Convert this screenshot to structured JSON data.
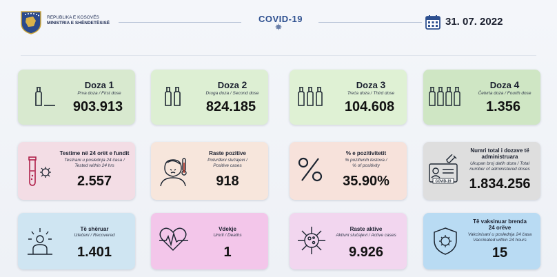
{
  "header": {
    "ministry_line1": "REPUBLIKA E KOSOVËS",
    "ministry_line2": "MINISTRIA E SHËNDETËSISË",
    "title": "COVID-19",
    "date": "31. 07. 2022"
  },
  "colors": {
    "accent": "#2d4f8f",
    "brand": "#1c2a52"
  },
  "cards": {
    "dose1": {
      "title": "Doza",
      "num": "1",
      "sub": "Prva doza / First dose",
      "value": "903.913",
      "icon": "vial-1-icon"
    },
    "dose2": {
      "title": "Doza",
      "num": "2",
      "sub": "Druga doza / Second dose",
      "value": "824.185",
      "icon": "vial-2-icon"
    },
    "dose3": {
      "title": "Doza",
      "num": "3",
      "sub": "Treća doza / Third dose",
      "value": "104.608",
      "icon": "vial-3-icon"
    },
    "dose4": {
      "title": "Doza",
      "num": "4",
      "sub": "Četvrta doza / Fourth dose",
      "value": "1.356",
      "icon": "vial-4-icon"
    },
    "tests": {
      "title": "Testime në 24 orët e fundit",
      "sub1": "Testirani u poslednja 24 časa /",
      "sub2": "Tested within 24 hrs",
      "value": "2.557",
      "icon": "test-tube-icon"
    },
    "positive": {
      "title": "Raste pozitive",
      "sub1": "Potvrđeni slučajevi /",
      "sub2": "Positive cases",
      "value": "918",
      "icon": "sick-person-icon"
    },
    "positivity": {
      "title": "% e pozitivitetit",
      "sub1": "% pozitivnih testova /",
      "sub2": "% of positivity",
      "value": "35.90%",
      "icon": "percent-icon"
    },
    "total_doses": {
      "title1": "Numri total i dozave të",
      "title2": "administruara",
      "sub1": "Ukupan broj datih doza / Total",
      "sub2": "number of administered doses",
      "value": "1.834.256",
      "icon": "vaccination-card-icon"
    },
    "recovered": {
      "title": "Të shëruar",
      "sub": "Izlečeni / Recovered",
      "value": "1.401",
      "icon": "recovered-person-icon"
    },
    "deaths": {
      "title": "Vdekje",
      "sub": "Umrli / Deaths",
      "value": "1",
      "icon": "heartbeat-icon"
    },
    "active": {
      "title": "Raste aktive",
      "sub": "Aktivni slučajevi / Active cases",
      "value": "9.926",
      "icon": "virus-icon"
    },
    "vaccinated24": {
      "title1": "Të vaksinuar brenda",
      "title2": "24 orëve",
      "sub1": "Vakcinisani u poslednja 24 časa",
      "sub2": "Vaccinated within 24 hours",
      "value": "15",
      "icon": "shield-virus-icon"
    }
  }
}
